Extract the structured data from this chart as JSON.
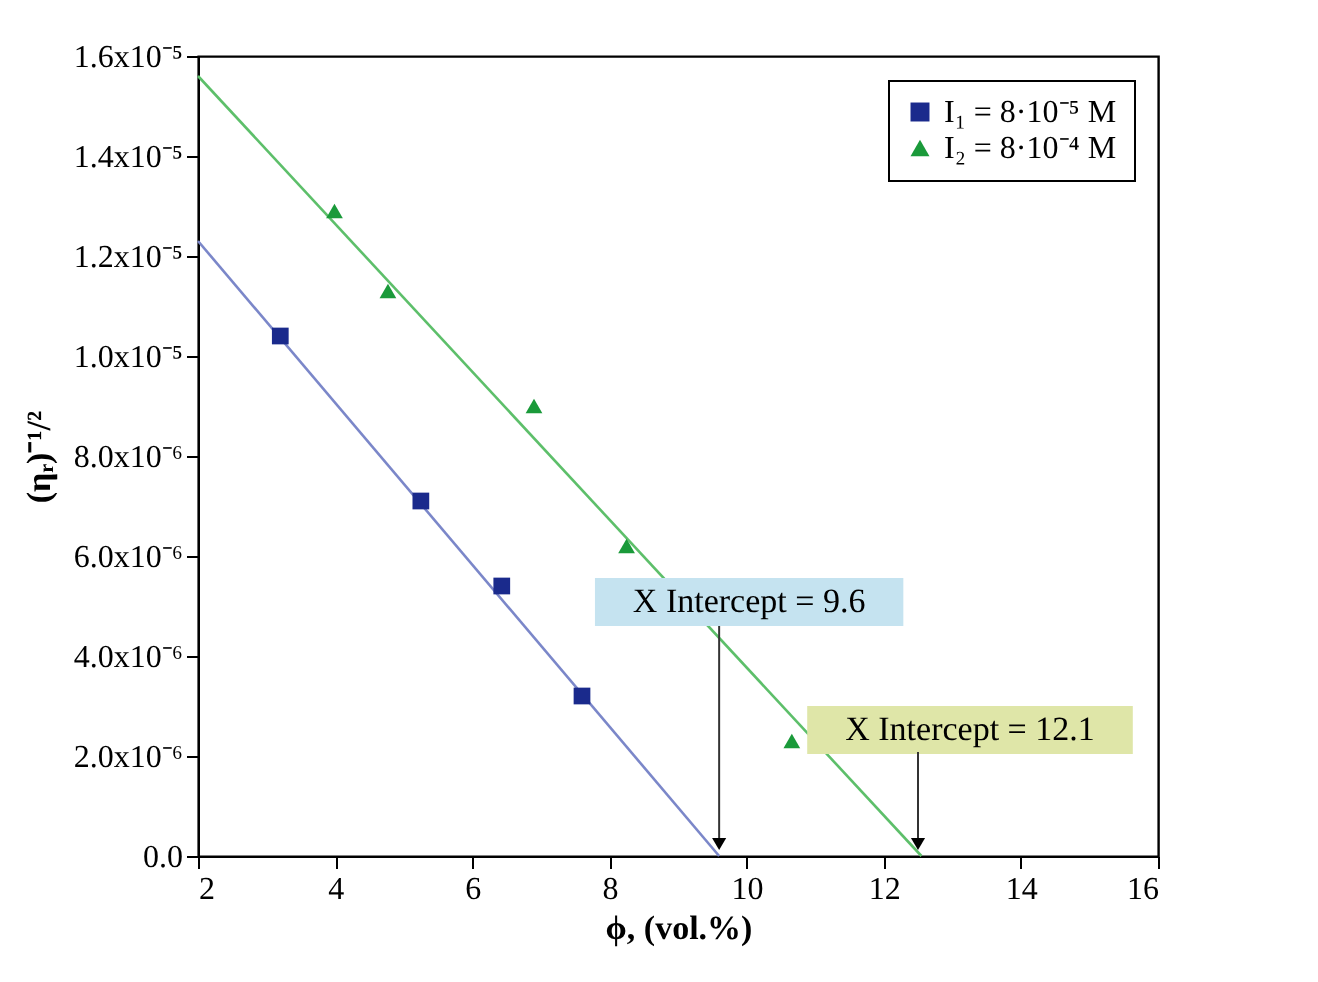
{
  "chart_data": {
    "type": "scatter",
    "xlabel": "ϕ, (vol.%)",
    "ylabel": "(ηᵣ)⁻¹/²",
    "xlim": [
      2,
      16
    ],
    "xticks": [
      2,
      4,
      6,
      8,
      10,
      12,
      14,
      16
    ],
    "ylim": [
      0,
      1.6e-05
    ],
    "yticks": [
      {
        "value": 0,
        "label": "0.0"
      },
      {
        "value": 2e-06,
        "label": "2.0x10⁻⁶"
      },
      {
        "value": 4e-06,
        "label": "4.0x10⁻⁶"
      },
      {
        "value": 6e-06,
        "label": "6.0x10⁻⁶"
      },
      {
        "value": 8e-06,
        "label": "8.0x10⁻⁶"
      },
      {
        "value": 1e-05,
        "label": "1.0x10⁻⁵"
      },
      {
        "value": 1.2e-05,
        "label": "1.2x10⁻⁵"
      },
      {
        "value": 1.4e-05,
        "label": "1.4x10⁻⁵"
      },
      {
        "value": 1.6e-05,
        "label": "1.6x10⁻⁵"
      }
    ],
    "grid": false,
    "legend": "top right",
    "series": [
      {
        "name": "I₁ = 8·10⁻⁵ M",
        "type": "scatter",
        "marker": "square",
        "color": "#1a2a8c",
        "x": [
          3.2,
          5.25,
          6.43,
          7.6
        ],
        "values": [
          1.04e-05,
          7.1e-06,
          5.4e-06,
          3.2e-06
        ]
      },
      {
        "name": "I₂ = 8·10⁻⁴ M",
        "type": "scatter",
        "marker": "triangle",
        "color": "#1a9a3a",
        "x": [
          3.99,
          4.77,
          6.9,
          8.25,
          10.66
        ],
        "values": [
          1.29e-05,
          1.13e-05,
          9e-06,
          6.2e-06,
          2.3e-06
        ]
      },
      {
        "type": "line",
        "line_style": "solid",
        "color": "#7b87c9",
        "x": [
          2,
          9.6
        ],
        "values": [
          1.23e-05,
          0
        ]
      },
      {
        "type": "line",
        "line_style": "solid",
        "color": "#5dbf6a",
        "x": [
          2,
          12.55
        ],
        "values": [
          1.56e-05,
          0
        ]
      }
    ],
    "annotations": [
      {
        "text": "X Intercept = 9.6",
        "x": 9.6,
        "y": 0
      },
      {
        "text": "X Intercept = 12.1",
        "x": 12.5,
        "y": 0
      }
    ]
  }
}
